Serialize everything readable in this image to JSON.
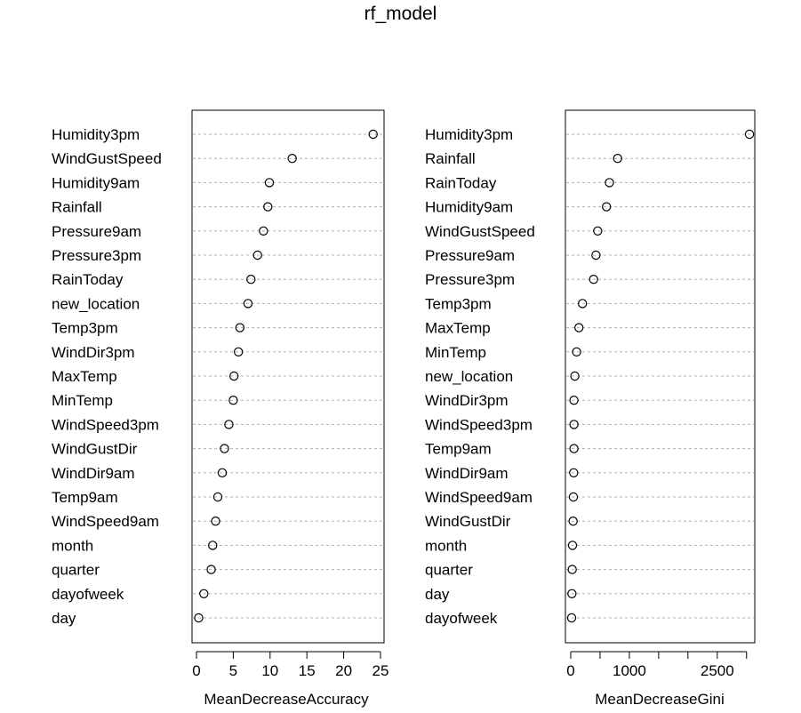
{
  "title": "rf_model",
  "chart_data": [
    {
      "type": "dotchart",
      "xlabel": "MeanDecreaseAccuracy",
      "xlim": [
        0,
        25
      ],
      "xticks": [
        0,
        5,
        10,
        15,
        20,
        25
      ],
      "grid": "dotted horizontal lines",
      "categories": [
        "Humidity3pm",
        "WindGustSpeed",
        "Humidity9am",
        "Rainfall",
        "Pressure9am",
        "Pressure3pm",
        "RainToday",
        "new_location",
        "Temp3pm",
        "WindDir3pm",
        "MaxTemp",
        "MinTemp",
        "WindSpeed3pm",
        "WindGustDir",
        "WindDir9am",
        "Temp9am",
        "WindSpeed9am",
        "month",
        "quarter",
        "dayofweek",
        "day"
      ],
      "values": [
        24.0,
        13.0,
        9.9,
        9.7,
        9.1,
        8.3,
        7.4,
        7.0,
        5.9,
        5.7,
        5.1,
        5.0,
        4.4,
        3.8,
        3.5,
        2.9,
        2.6,
        2.2,
        2.0,
        1.0,
        0.3
      ]
    },
    {
      "type": "dotchart",
      "xlabel": "MeanDecreaseGini",
      "xlim": [
        0,
        3200
      ],
      "xticks": [
        0,
        1000,
        2500
      ],
      "minor_xticks": [
        500,
        1500,
        2000,
        3000
      ],
      "grid": "dotted horizontal lines",
      "categories": [
        "Humidity3pm",
        "Rainfall",
        "RainToday",
        "Humidity9am",
        "WindGustSpeed",
        "Pressure9am",
        "Pressure3pm",
        "Temp3pm",
        "MaxTemp",
        "MinTemp",
        "new_location",
        "WindDir3pm",
        "WindSpeed3pm",
        "Temp9am",
        "WindDir9am",
        "WindSpeed9am",
        "WindGustDir",
        "month",
        "quarter",
        "day",
        "dayofweek"
      ],
      "values": [
        3050,
        800,
        660,
        610,
        460,
        430,
        390,
        200,
        140,
        100,
        70,
        55,
        55,
        55,
        50,
        45,
        40,
        30,
        25,
        20,
        15
      ]
    }
  ]
}
